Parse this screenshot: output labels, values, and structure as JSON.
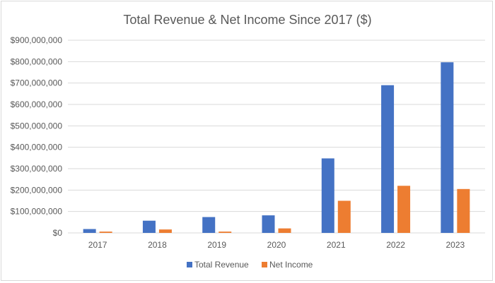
{
  "chart_data": {
    "type": "bar",
    "title": "Total Revenue & Net Income Since 2017 ($)",
    "categories": [
      "2017",
      "2018",
      "2019",
      "2020",
      "2021",
      "2022",
      "2023"
    ],
    "series": [
      {
        "name": "Total Revenue",
        "color": "#4472C4",
        "values": [
          18000000,
          57000000,
          74000000,
          82000000,
          348000000,
          690000000,
          797000000
        ]
      },
      {
        "name": "Net Income",
        "color": "#ED7D31",
        "values": [
          6000000,
          16000000,
          6000000,
          21000000,
          150000000,
          220000000,
          205000000
        ]
      }
    ],
    "ylim": [
      0,
      900000000
    ],
    "yticks": [
      0,
      100000000,
      200000000,
      300000000,
      400000000,
      500000000,
      600000000,
      700000000,
      800000000,
      900000000
    ],
    "ytick_labels": [
      "$0",
      "$100,000,000",
      "$200,000,000",
      "$300,000,000",
      "$400,000,000",
      "$500,000,000",
      "$600,000,000",
      "$700,000,000",
      "$800,000,000",
      "$900,000,000"
    ],
    "xlabel": "",
    "ylabel": "",
    "grid": true,
    "legend_position": "bottom"
  }
}
